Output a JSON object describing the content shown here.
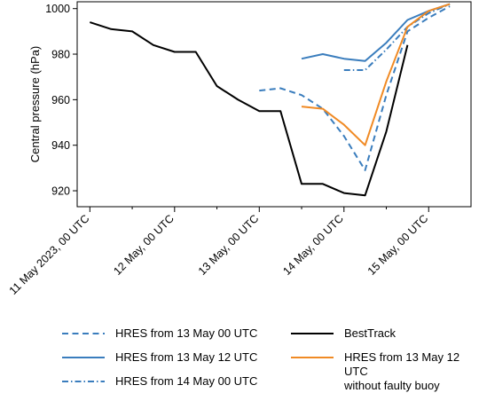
{
  "chart_data": {
    "type": "line",
    "ylabel": "Central pressure (hPa)",
    "xlabel": "",
    "ylim": [
      913,
      1003
    ],
    "xlim": [
      -0.15,
      4.5
    ],
    "yticks": [
      920,
      940,
      960,
      980,
      1000
    ],
    "xticks": [
      {
        "x": 0,
        "label": "11 May 2023, 00 UTC"
      },
      {
        "x": 1,
        "label": "12 May, 00 UTC"
      },
      {
        "x": 2,
        "label": "13 May, 00 UTC"
      },
      {
        "x": 3,
        "label": "14 May, 00 UTC"
      },
      {
        "x": 4,
        "label": "15 May, 00 UTC"
      }
    ],
    "x_unit": "days since 11 May 2023, 00 UTC",
    "series": [
      {
        "name": "BestTrack",
        "color": "#000000",
        "style": "solid",
        "x": [
          0,
          0.25,
          0.5,
          0.75,
          1.0,
          1.25,
          1.5,
          1.75,
          2.0,
          2.25,
          2.5,
          2.75,
          3.0,
          3.25,
          3.5,
          3.75
        ],
        "y": [
          994,
          991,
          990,
          984,
          981,
          981,
          966,
          960,
          955,
          955,
          923,
          923,
          919,
          918,
          946,
          984
        ]
      },
      {
        "name": "HRES from 13 May 00 UTC",
        "color": "#3a7dbd",
        "style": "dashed",
        "x": [
          2.0,
          2.25,
          2.5,
          2.75,
          3.0,
          3.25,
          3.5,
          3.75,
          4.0,
          4.25
        ],
        "y": [
          964,
          965,
          962,
          956,
          944,
          929,
          962,
          990,
          996,
          1001
        ]
      },
      {
        "name": "HRES from 13 May 12 UTC",
        "color": "#3a7dbd",
        "style": "solid",
        "x": [
          2.5,
          2.75,
          3.0,
          3.25,
          3.5,
          3.75,
          4.0,
          4.25
        ],
        "y": [
          978,
          980,
          978,
          977,
          985,
          995,
          999,
          1002
        ]
      },
      {
        "name": "HRES from 14 May 00 UTC",
        "color": "#3a7dbd",
        "style": "dashdot",
        "x": [
          3.0,
          3.25,
          3.5,
          3.75,
          4.0,
          4.25
        ],
        "y": [
          973,
          973,
          982,
          992,
          998,
          1002
        ]
      },
      {
        "name": "HRES from 13 May 12 UTC\nwithout faulty buoy",
        "color": "#f08a24",
        "style": "solid",
        "x": [
          2.5,
          2.75,
          3.0,
          3.25,
          3.5,
          3.75,
          4.0,
          4.25
        ],
        "y": [
          957,
          956,
          949,
          940,
          968,
          992,
          999,
          1002
        ]
      }
    ],
    "legend": {
      "placement": "bottom",
      "order": [
        1,
        2,
        3,
        0,
        4
      ]
    }
  }
}
